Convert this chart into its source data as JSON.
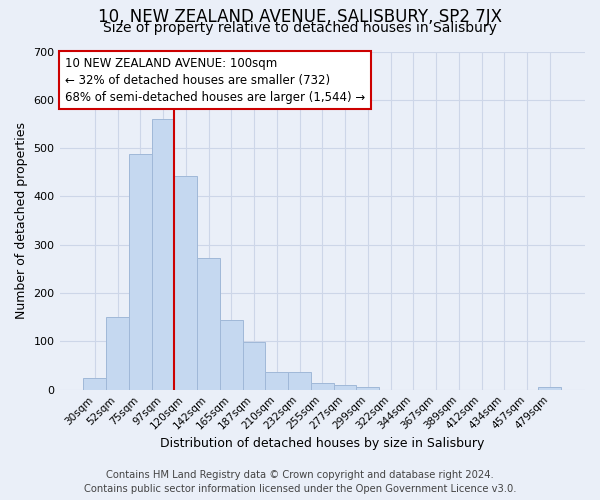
{
  "title": "10, NEW ZEALAND AVENUE, SALISBURY, SP2 7JX",
  "subtitle": "Size of property relative to detached houses in Salisbury",
  "xlabel": "Distribution of detached houses by size in Salisbury",
  "ylabel": "Number of detached properties",
  "bar_labels": [
    "30sqm",
    "52sqm",
    "75sqm",
    "97sqm",
    "120sqm",
    "142sqm",
    "165sqm",
    "187sqm",
    "210sqm",
    "232sqm",
    "255sqm",
    "277sqm",
    "299sqm",
    "322sqm",
    "344sqm",
    "367sqm",
    "389sqm",
    "412sqm",
    "434sqm",
    "457sqm",
    "479sqm"
  ],
  "bar_heights": [
    25,
    150,
    488,
    560,
    442,
    272,
    145,
    98,
    36,
    36,
    14,
    10,
    5,
    0,
    0,
    0,
    0,
    0,
    0,
    0,
    5
  ],
  "bar_color": "#c5d8f0",
  "bar_edge_color": "#a0b8d8",
  "vline_color": "#cc0000",
  "annotation_line1": "10 NEW ZEALAND AVENUE: 100sqm",
  "annotation_line2": "← 32% of detached houses are smaller (732)",
  "annotation_line3": "68% of semi-detached houses are larger (1,544) →",
  "annotation_box_color": "#ffffff",
  "annotation_box_edge_color": "#cc0000",
  "ylim": [
    0,
    700
  ],
  "yticks": [
    0,
    100,
    200,
    300,
    400,
    500,
    600,
    700
  ],
  "grid_color": "#cdd6e8",
  "background_color": "#eaeff8",
  "footer_line1": "Contains HM Land Registry data © Crown copyright and database right 2024.",
  "footer_line2": "Contains public sector information licensed under the Open Government Licence v3.0.",
  "title_fontsize": 12,
  "subtitle_fontsize": 10,
  "footer_fontsize": 7.2,
  "annot_fontsize": 8.5
}
